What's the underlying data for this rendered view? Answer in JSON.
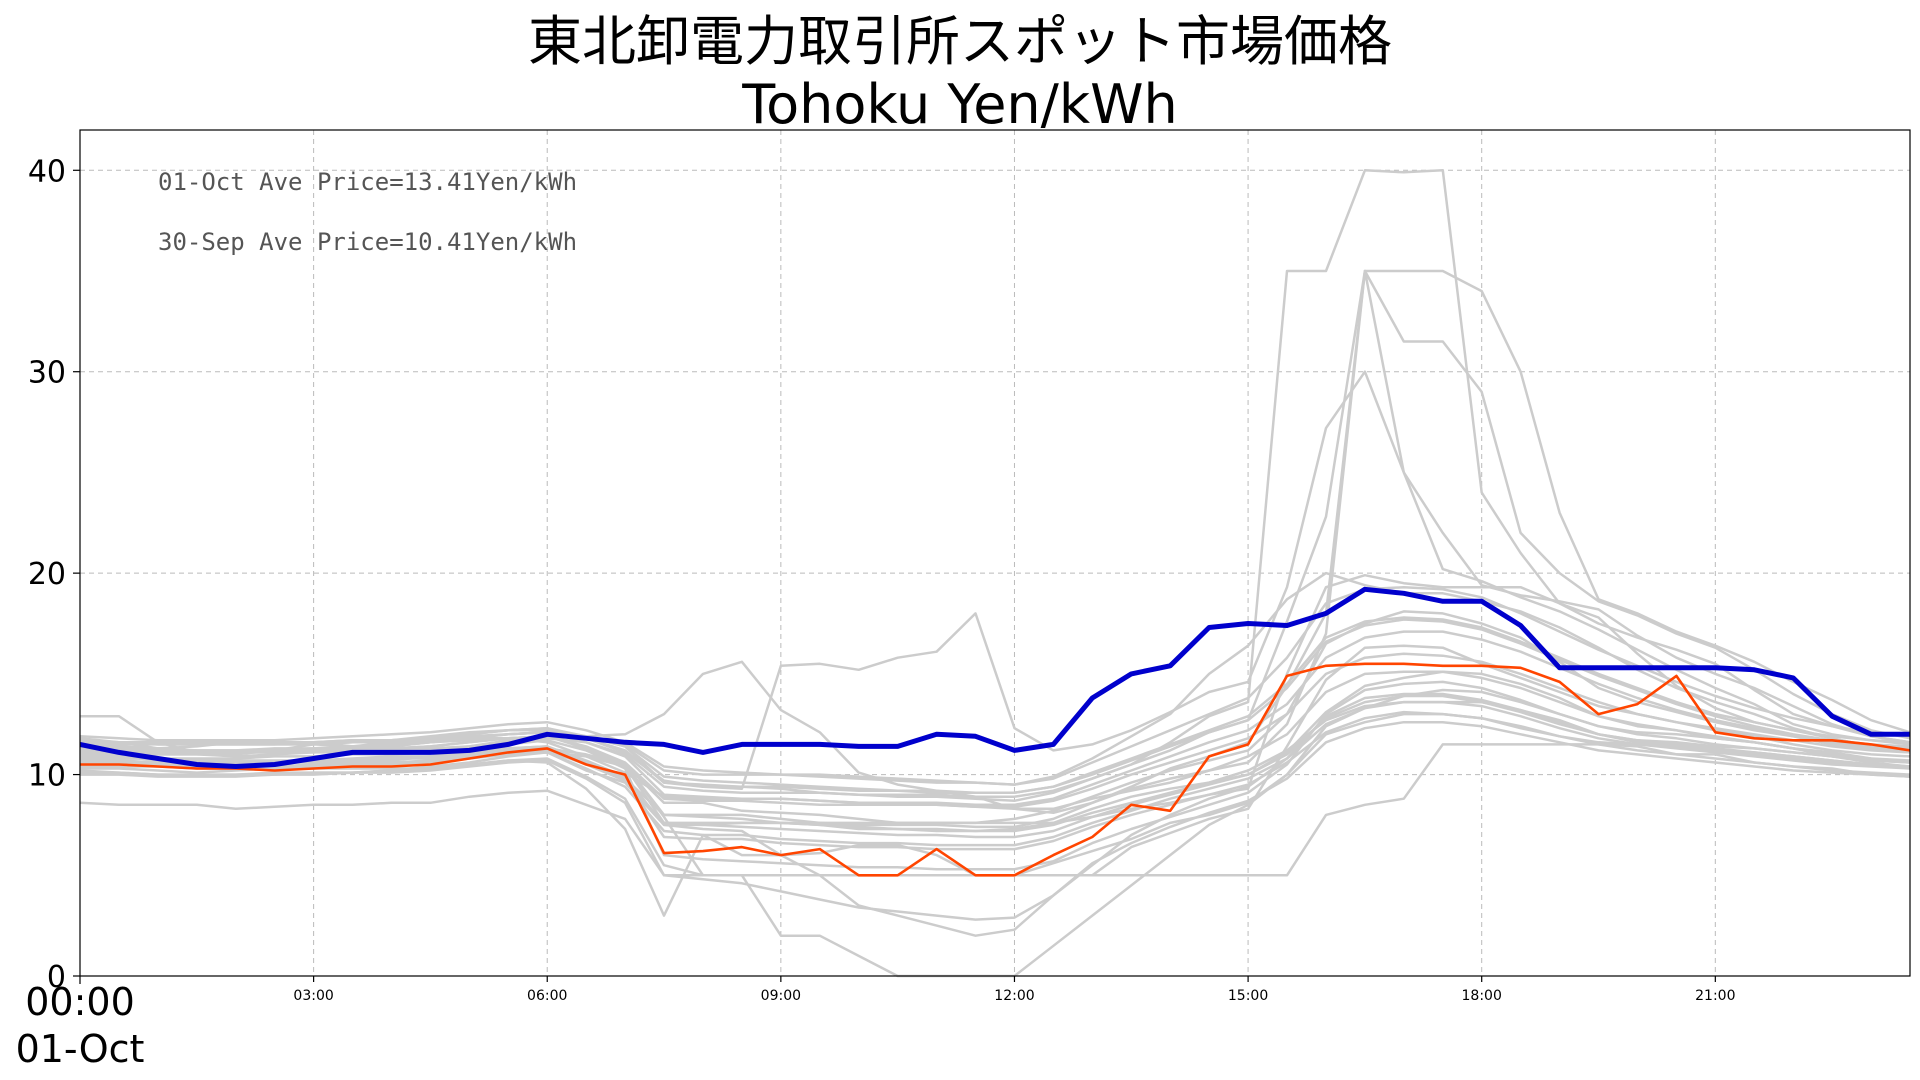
{
  "chart_data": {
    "type": "line",
    "title": "東北卸電力取引所スポット市場価格",
    "subtitle": "Tohoku Yen/kWh",
    "ylim": [
      0,
      42
    ],
    "yticks": [
      0,
      10,
      20,
      30,
      40
    ],
    "xlim": [
      0,
      47
    ],
    "xtick_labels": [
      "03:00",
      "06:00",
      "09:00",
      "12:00",
      "15:00",
      "18:00",
      "21:00"
    ],
    "x_start_label": [
      "00:00",
      "01-Oct"
    ],
    "grid": true,
    "annotations": [
      "01-Oct Ave Price=13.41Yen/kWh",
      "30-Sep Ave Price=10.41Yen/kWh"
    ],
    "colors": {
      "today": "#0000cc",
      "yesterday": "#ff4500",
      "history": "#cccccc",
      "grid": "#bbbbbb"
    },
    "series": [
      {
        "key": "today",
        "values": [
          11.5,
          11.1,
          10.8,
          10.5,
          10.4,
          10.5,
          10.8,
          11.1,
          11.1,
          11.1,
          11.2,
          11.5,
          12.0,
          11.8,
          11.6,
          11.5,
          11.1,
          11.5,
          11.5,
          11.5,
          11.4,
          11.4,
          12.0,
          11.9,
          11.2,
          11.5,
          13.8,
          15.0,
          15.4,
          17.3,
          17.5,
          17.4,
          18.0,
          19.2,
          19.0,
          18.6,
          18.6,
          17.4,
          15.3,
          15.3,
          15.3,
          15.3,
          15.3,
          15.2,
          14.8,
          12.9,
          12.0,
          12.0
        ]
      },
      {
        "key": "yesterday",
        "values": [
          10.5,
          10.5,
          10.4,
          10.3,
          10.3,
          10.2,
          10.3,
          10.4,
          10.4,
          10.5,
          10.8,
          11.1,
          11.3,
          10.5,
          10.0,
          6.1,
          6.2,
          6.4,
          6.0,
          6.3,
          5.0,
          5.0,
          6.3,
          5.0,
          5.0,
          6.0,
          6.9,
          8.5,
          8.2,
          10.9,
          11.5,
          14.9,
          15.4,
          15.5,
          15.5,
          15.4,
          15.4,
          15.3,
          14.6,
          13.0,
          13.5,
          14.9,
          12.1,
          11.8,
          11.7,
          11.7,
          11.5,
          11.2
        ]
      }
    ],
    "history": [
      [
        11.0,
        10.9,
        10.7,
        10.6,
        10.6,
        10.6,
        10.7,
        10.8,
        10.9,
        10.9,
        11.1,
        11.1,
        11.1,
        10.6,
        9.8,
        8.0,
        8.0,
        8.0,
        7.8,
        7.6,
        7.5,
        7.5,
        7.5,
        7.4,
        7.4,
        7.8,
        8.6,
        9.3,
        9.8,
        10.2,
        10.9,
        12.0,
        14.1,
        15.0,
        15.1,
        15.1,
        15.0,
        14.5,
        13.8,
        12.9,
        12.4,
        12.2,
        11.8,
        11.6,
        11.3,
        10.9,
        10.7,
        10.6
      ],
      [
        11.8,
        11.6,
        11.3,
        11.1,
        11.1,
        11.1,
        11.2,
        11.3,
        11.4,
        11.6,
        11.8,
        12.0,
        12.1,
        11.2,
        10.5,
        8.6,
        8.6,
        8.2,
        8.1,
        8.0,
        7.8,
        7.6,
        7.6,
        7.6,
        7.8,
        8.2,
        8.9,
        9.6,
        10.2,
        10.7,
        11.2,
        13.0,
        16.5,
        17.5,
        18.1,
        18.0,
        17.5,
        16.8,
        15.6,
        14.3,
        13.6,
        13.1,
        12.6,
        12.2,
        11.9,
        11.5,
        11.3,
        11.1
      ],
      [
        12.9,
        12.9,
        11.6,
        11.1,
        11.1,
        11.1,
        11.1,
        11.1,
        11.1,
        11.1,
        11.1,
        11.1,
        11.1,
        10.9,
        10.4,
        7.6,
        7.6,
        7.6,
        7.6,
        7.6,
        7.6,
        7.6,
        7.6,
        7.6,
        7.6,
        7.6,
        7.9,
        8.3,
        8.6,
        9.0,
        9.3,
        15.0,
        19.3,
        19.9,
        19.5,
        19.3,
        19.3,
        19.3,
        18.5,
        17.8,
        16.0,
        14.4,
        13.3,
        12.6,
        12.2,
        11.8,
        11.4,
        11.1
      ],
      [
        10.2,
        10.1,
        10.0,
        10.0,
        10.0,
        10.1,
        10.1,
        10.1,
        10.2,
        10.4,
        10.6,
        10.9,
        11.1,
        10.2,
        9.6,
        7.5,
        7.5,
        7.6,
        7.6,
        7.5,
        7.3,
        7.3,
        7.2,
        7.2,
        7.3,
        7.6,
        8.3,
        8.9,
        9.3,
        9.6,
        10.2,
        11.2,
        12.7,
        13.4,
        13.6,
        13.6,
        13.6,
        13.2,
        12.7,
        12.0,
        11.7,
        11.6,
        11.4,
        11.3,
        11.1,
        10.9,
        10.6,
        10.4
      ],
      [
        8.6,
        8.5,
        8.5,
        8.5,
        8.3,
        8.4,
        8.5,
        8.5,
        8.6,
        8.6,
        8.9,
        9.1,
        9.2,
        8.5,
        7.8,
        5.0,
        5.0,
        5.0,
        5.0,
        5.0,
        5.0,
        5.0,
        5.0,
        5.0,
        5.0,
        5.0,
        5.0,
        5.0,
        5.0,
        5.0,
        5.0,
        5.0,
        8.0,
        8.5,
        8.8,
        11.5,
        11.5,
        11.5,
        11.5,
        11.5,
        11.4,
        11.0,
        11.0,
        10.6,
        10.4,
        10.3,
        10.0,
        9.9
      ],
      [
        10.3,
        10.3,
        10.2,
        10.1,
        10.2,
        10.3,
        10.3,
        10.3,
        10.3,
        10.3,
        10.5,
        10.7,
        10.6,
        9.3,
        7.3,
        3.0,
        7.0,
        6.0,
        6.0,
        6.1,
        6.5,
        6.5,
        6.0,
        5.0,
        5.0,
        5.6,
        6.2,
        6.8,
        7.6,
        8.0,
        8.6,
        10.0,
        12.4,
        13.3,
        13.9,
        14.2,
        14.1,
        13.6,
        13.0,
        12.4,
        12.1,
        12.0,
        11.8,
        11.6,
        11.3,
        11.1,
        10.8,
        10.6
      ],
      [
        11.4,
        11.4,
        11.3,
        11.4,
        11.6,
        11.6,
        11.6,
        11.4,
        11.4,
        11.6,
        11.8,
        11.8,
        11.6,
        10.9,
        10.1,
        8.9,
        8.8,
        8.8,
        8.8,
        8.7,
        8.6,
        8.5,
        8.5,
        8.4,
        8.3,
        8.3,
        8.8,
        9.2,
        9.6,
        10.2,
        10.6,
        12.5,
        17.0,
        35.0,
        25.0,
        20.2,
        19.6,
        18.8,
        18.1,
        17.2,
        16.2,
        15.2,
        14.3,
        13.5,
        12.5,
        12.0,
        11.7,
        11.5
      ],
      [
        11.5,
        11.5,
        11.5,
        11.5,
        11.5,
        11.5,
        11.5,
        11.4,
        11.2,
        11.2,
        11.4,
        11.7,
        11.9,
        11.9,
        11.4,
        9.6,
        9.4,
        9.4,
        9.3,
        9.1,
        9.0,
        8.9,
        8.9,
        8.8,
        8.7,
        9.1,
        9.8,
        10.5,
        11.6,
        12.9,
        13.6,
        35.0,
        35.0,
        40.0,
        39.9,
        40.0,
        24.0,
        21.0,
        18.5,
        17.5,
        16.8,
        16.2,
        15.5,
        14.2,
        13.0,
        12.4,
        11.9,
        11.6
      ],
      [
        11.0,
        11.0,
        11.0,
        11.0,
        11.0,
        11.2,
        11.5,
        11.6,
        11.6,
        11.6,
        11.7,
        11.8,
        11.9,
        11.9,
        12.0,
        13.0,
        15.0,
        15.6,
        13.2,
        12.1,
        10.1,
        9.5,
        9.2,
        8.9,
        8.3,
        8.1,
        8.6,
        9.4,
        10.3,
        10.9,
        11.6,
        14.4,
        18.0,
        35.0,
        31.5,
        31.5,
        29.0,
        22.0,
        20.0,
        18.6,
        17.9,
        17.0,
        16.3,
        15.2,
        14.0,
        13.0,
        12.2,
        11.8
      ],
      [
        11.1,
        11.1,
        11.0,
        11.0,
        10.9,
        11.0,
        11.1,
        11.2,
        11.2,
        11.3,
        11.4,
        11.6,
        11.8,
        11.6,
        11.0,
        9.4,
        9.2,
        9.1,
        9.1,
        9.1,
        9.0,
        9.0,
        9.0,
        8.9,
        8.9,
        9.2,
        9.8,
        10.5,
        11.2,
        12.1,
        12.7,
        17.6,
        22.8,
        35.0,
        35.0,
        35.0,
        34.0,
        30.0,
        23.0,
        18.7,
        18.0,
        17.1,
        16.4,
        15.6,
        14.6,
        13.7,
        12.7,
        12.1
      ],
      [
        11.6,
        11.6,
        11.6,
        11.6,
        11.6,
        11.6,
        11.6,
        11.7,
        11.7,
        11.9,
        12.1,
        12.2,
        12.2,
        11.8,
        11.1,
        9.7,
        9.4,
        9.3,
        15.4,
        15.5,
        15.2,
        15.8,
        16.1,
        18.0,
        12.3,
        11.2,
        11.5,
        12.2,
        13.1,
        14.1,
        14.6,
        19.3,
        27.2,
        30.0,
        25.0,
        22.0,
        19.4,
        18.9,
        18.6,
        18.2,
        16.9,
        15.8,
        15.0,
        14.3,
        13.4,
        12.5,
        11.9,
        11.6
      ],
      [
        11.5,
        11.4,
        11.3,
        11.2,
        11.2,
        11.2,
        11.3,
        11.4,
        11.6,
        11.7,
        11.9,
        12.0,
        12.1,
        11.9,
        11.5,
        10.2,
        10.0,
        10.0,
        10.0,
        10.0,
        9.9,
        9.8,
        9.7,
        9.6,
        9.5,
        9.9,
        10.8,
        11.9,
        13.0,
        15.0,
        16.4,
        18.7,
        20.0,
        19.4,
        19.0,
        19.0,
        18.6,
        18.1,
        17.3,
        16.3,
        15.2,
        14.3,
        13.6,
        13.0,
        12.3,
        11.8,
        11.4,
        11.2
      ],
      [
        10.9,
        10.8,
        10.8,
        10.7,
        10.7,
        10.7,
        10.7,
        10.7,
        10.8,
        10.8,
        11.0,
        11.2,
        11.3,
        11.0,
        10.5,
        8.0,
        7.9,
        7.8,
        7.6,
        7.5,
        7.4,
        7.3,
        7.3,
        7.2,
        7.2,
        7.5,
        8.1,
        8.6,
        9.1,
        9.6,
        10.0,
        11.1,
        13.1,
        14.4,
        14.8,
        15.1,
        14.8,
        14.3,
        13.6,
        12.9,
        12.5,
        12.2,
        11.9,
        11.6,
        11.3,
        11.0,
        10.8,
        10.7
      ],
      [
        11.2,
        11.2,
        11.1,
        11.1,
        11.1,
        11.2,
        11.2,
        11.2,
        11.3,
        11.4,
        11.6,
        11.8,
        11.9,
        11.3,
        10.5,
        7.9,
        5.0,
        5.0,
        5.0,
        5.0,
        5.0,
        5.0,
        5.0,
        5.0,
        5.0,
        5.0,
        5.0,
        6.4,
        7.1,
        7.8,
        8.3,
        11.4,
        14.7,
        16.3,
        16.4,
        16.3,
        15.5,
        14.8,
        14.1,
        13.4,
        13.0,
        12.6,
        12.2,
        11.9,
        11.5,
        11.2,
        11.0,
        10.9
      ],
      [
        10.6,
        10.6,
        10.5,
        10.5,
        10.5,
        10.6,
        10.6,
        10.6,
        10.7,
        10.9,
        11.1,
        11.3,
        11.4,
        10.6,
        9.8,
        6.9,
        6.8,
        6.8,
        6.6,
        6.5,
        6.4,
        6.4,
        6.3,
        6.3,
        6.3,
        6.7,
        7.4,
        8.0,
        8.5,
        9.0,
        9.5,
        10.6,
        12.1,
        12.8,
        13.1,
        13.0,
        12.8,
        12.3,
        11.9,
        11.6,
        11.5,
        11.4,
        11.2,
        11.1,
        10.9,
        10.7,
        10.5,
        10.4
      ],
      [
        10.8,
        10.8,
        10.8,
        10.8,
        10.8,
        10.9,
        10.9,
        11.0,
        11.0,
        11.1,
        11.3,
        11.5,
        11.7,
        11.2,
        10.3,
        6.0,
        5.8,
        5.7,
        5.6,
        5.5,
        5.4,
        5.4,
        5.3,
        5.3,
        5.3,
        5.7,
        6.6,
        7.3,
        7.9,
        8.5,
        9.1,
        10.5,
        13.0,
        14.2,
        14.5,
        14.6,
        14.3,
        13.7,
        13.0,
        12.4,
        12.0,
        11.8,
        11.5,
        11.3,
        11.1,
        10.9,
        10.7,
        10.6
      ],
      [
        11.3,
        11.2,
        11.1,
        11.1,
        11.1,
        11.1,
        11.2,
        11.3,
        11.3,
        11.4,
        11.6,
        11.8,
        11.9,
        11.4,
        10.6,
        8.8,
        8.7,
        8.7,
        8.6,
        8.5,
        8.5,
        8.5,
        8.5,
        8.4,
        8.4,
        8.7,
        9.3,
        10.0,
        10.6,
        11.2,
        11.8,
        13.0,
        15.0,
        15.8,
        16.0,
        15.9,
        15.6,
        15.0,
        14.3,
        13.6,
        13.0,
        12.6,
        12.3,
        12.0,
        11.7,
        11.4,
        11.2,
        11.1
      ],
      [
        10.4,
        10.4,
        10.4,
        10.3,
        10.3,
        10.4,
        10.4,
        10.4,
        10.5,
        10.6,
        10.8,
        11.0,
        11.1,
        10.3,
        9.4,
        7.2,
        7.0,
        7.0,
        6.8,
        6.7,
        6.6,
        6.6,
        6.5,
        6.5,
        6.5,
        6.9,
        7.6,
        8.2,
        8.8,
        9.3,
        9.8,
        10.8,
        12.5,
        13.3,
        13.6,
        13.6,
        13.4,
        12.9,
        12.3,
        11.8,
        11.5,
        11.3,
        11.1,
        10.9,
        10.7,
        10.5,
        10.4,
        10.3
      ],
      [
        11.7,
        11.6,
        11.5,
        11.5,
        11.5,
        11.5,
        11.5,
        11.6,
        11.7,
        11.8,
        12.0,
        12.2,
        12.3,
        11.9,
        11.4,
        9.9,
        9.7,
        9.6,
        9.5,
        9.4,
        9.3,
        9.2,
        9.2,
        9.1,
        9.1,
        9.4,
        10.1,
        10.8,
        11.5,
        12.2,
        12.9,
        14.5,
        16.8,
        17.6,
        17.8,
        17.7,
        17.3,
        16.6,
        15.8,
        15.0,
        14.3,
        13.6,
        13.0,
        12.6,
        12.2,
        11.9,
        11.7,
        11.6
      ],
      [
        10.1,
        10.1,
        10.0,
        10.0,
        10.0,
        10.0,
        10.1,
        10.1,
        10.2,
        10.3,
        10.5,
        10.7,
        10.8,
        9.9,
        8.8,
        5.5,
        5.0,
        5.0,
        2.0,
        2.0,
        1.0,
        0.0,
        0.0,
        0.0,
        0.0,
        1.5,
        3.0,
        4.5,
        6.0,
        7.5,
        8.5,
        10.0,
        12.0,
        12.6,
        13.0,
        13.0,
        12.8,
        12.4,
        11.9,
        11.5,
        11.2,
        11.0,
        10.8,
        10.6,
        10.4,
        10.2,
        10.1,
        10.0
      ],
      [
        10.7,
        10.7,
        10.6,
        10.6,
        10.6,
        10.6,
        10.7,
        10.7,
        10.8,
        10.9,
        11.1,
        11.3,
        11.4,
        10.7,
        9.9,
        7.5,
        7.3,
        7.2,
        6.0,
        5.0,
        3.5,
        3.0,
        2.5,
        2.0,
        2.3,
        4.0,
        5.5,
        7.0,
        8.0,
        8.8,
        9.4,
        10.8,
        12.9,
        13.8,
        14.0,
        14.0,
        13.7,
        13.2,
        12.6,
        12.0,
        11.6,
        11.4,
        11.2,
        11.0,
        10.8,
        10.6,
        10.5,
        10.4
      ],
      [
        11.9,
        11.8,
        11.7,
        11.7,
        11.7,
        11.7,
        11.8,
        11.9,
        12.0,
        12.1,
        12.3,
        12.5,
        12.6,
        12.2,
        11.6,
        10.4,
        10.2,
        10.1,
        10.0,
        9.9,
        9.8,
        9.7,
        9.6,
        9.6,
        9.5,
        9.8,
        10.6,
        11.4,
        12.2,
        13.0,
        13.8,
        15.8,
        18.5,
        19.2,
        19.3,
        19.2,
        18.8,
        18.0,
        17.1,
        16.2,
        15.4,
        14.6,
        13.9,
        13.3,
        12.8,
        12.4,
        12.1,
        11.9
      ],
      [
        10.5,
        10.5,
        10.4,
        10.4,
        10.4,
        10.4,
        10.5,
        10.5,
        10.6,
        10.7,
        10.9,
        11.1,
        11.2,
        10.5,
        9.7,
        7.6,
        7.5,
        7.4,
        7.3,
        7.2,
        7.1,
        7.0,
        7.0,
        6.9,
        6.9,
        7.2,
        7.9,
        8.5,
        9.0,
        9.5,
        10.0,
        11.0,
        12.8,
        13.6,
        13.9,
        13.9,
        13.6,
        13.1,
        12.5,
        12.0,
        11.7,
        11.5,
        11.3,
        11.1,
        10.9,
        10.7,
        10.5,
        10.4
      ],
      [
        11.3,
        11.3,
        11.2,
        11.2,
        11.2,
        11.3,
        11.3,
        11.4,
        11.5,
        11.6,
        11.8,
        12.0,
        12.1,
        11.6,
        10.9,
        9.0,
        8.9,
        8.8,
        8.8,
        8.7,
        8.6,
        8.6,
        8.6,
        8.5,
        8.5,
        8.8,
        9.5,
        10.2,
        10.9,
        11.6,
        12.2,
        13.5,
        15.8,
        16.8,
        17.1,
        17.1,
        16.7,
        16.1,
        15.3,
        14.5,
        13.8,
        13.2,
        12.7,
        12.3,
        11.9,
        11.6,
        11.4,
        11.3
      ],
      [
        10.0,
        10.0,
        9.9,
        9.9,
        9.9,
        10.0,
        10.0,
        10.1,
        10.1,
        10.2,
        10.4,
        10.6,
        10.7,
        9.8,
        8.6,
        5.0,
        4.8,
        4.6,
        4.2,
        3.8,
        3.4,
        3.2,
        3.0,
        2.8,
        2.9,
        4.0,
        5.6,
        6.6,
        7.4,
        8.1,
        8.7,
        9.8,
        11.6,
        12.3,
        12.6,
        12.6,
        12.4,
        12.0,
        11.6,
        11.2,
        11.0,
        10.8,
        10.6,
        10.4,
        10.2,
        10.1,
        10.0,
        9.9
      ],
      [
        11.6,
        11.6,
        11.5,
        11.5,
        11.5,
        11.5,
        11.6,
        11.7,
        11.7,
        11.8,
        12.0,
        12.2,
        12.3,
        11.8,
        11.2,
        9.6,
        9.5,
        9.4,
        9.4,
        9.3,
        9.2,
        9.2,
        9.1,
        9.1,
        9.1,
        9.4,
        10.0,
        10.7,
        11.4,
        12.1,
        12.7,
        14.3,
        16.6,
        17.4,
        17.7,
        17.6,
        17.2,
        16.5,
        15.7,
        14.9,
        14.2,
        13.5,
        12.9,
        12.4,
        12.0,
        11.7,
        11.5,
        11.4
      ]
    ]
  }
}
